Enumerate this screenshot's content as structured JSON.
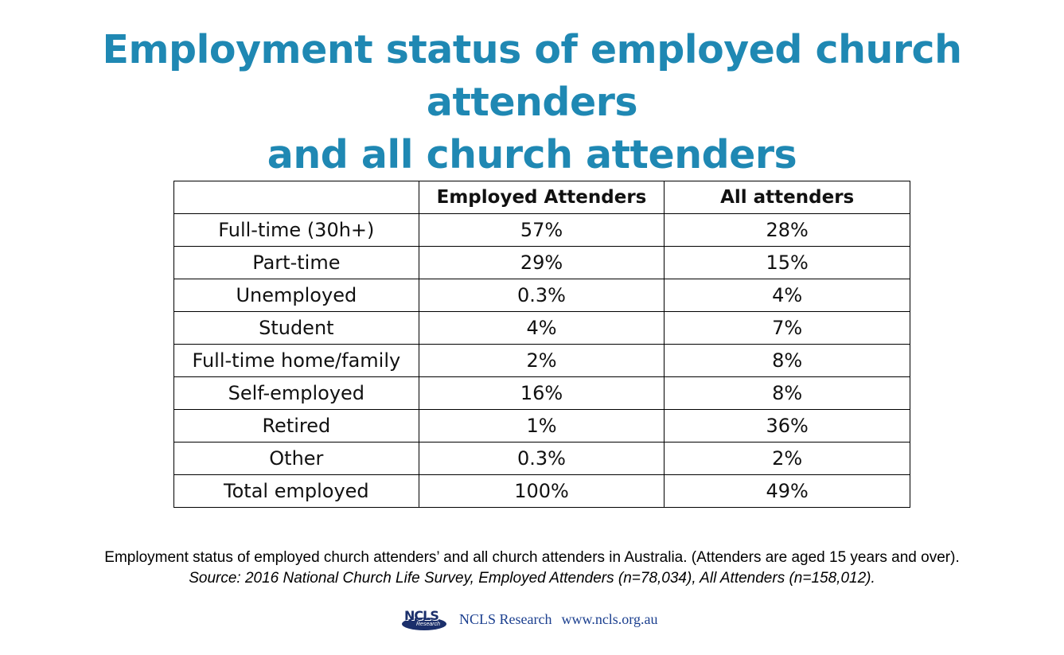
{
  "title": {
    "line1": "Employment status of employed church attenders",
    "line2": "and all church attenders"
  },
  "chart_data": {
    "type": "table",
    "columns": [
      "",
      "Employed Attenders",
      "All attenders"
    ],
    "rows": [
      {
        "label": "Full-time (30h+)",
        "values": [
          "57%",
          "28%"
        ]
      },
      {
        "label": "Part-time",
        "values": [
          "29%",
          "15%"
        ]
      },
      {
        "label": "Unemployed",
        "values": [
          "0.3%",
          "4%"
        ]
      },
      {
        "label": "Student",
        "values": [
          "4%",
          "7%"
        ]
      },
      {
        "label": "Full-time home/family",
        "values": [
          "2%",
          "8%"
        ]
      },
      {
        "label": "Self-employed",
        "values": [
          "16%",
          "8%"
        ]
      },
      {
        "label": "Retired",
        "values": [
          "1%",
          "36%"
        ]
      },
      {
        "label": "Other",
        "values": [
          "0.3%",
          "2%"
        ]
      },
      {
        "label": "Total employed",
        "values": [
          "100%",
          "49%"
        ]
      }
    ]
  },
  "caption": {
    "text": "Employment status of employed church attenders’ and all church attenders in Australia. (Attenders are aged 15 years and over).",
    "source": "Source: 2016 National Church Life Survey, Employed Attenders (n=78,034), All Attenders (n=158,012)."
  },
  "footer": {
    "logo_text": "NCLS",
    "logo_subtext": "Research",
    "org": "NCLS Research",
    "url": "www.ncls.org.au"
  },
  "colors": {
    "title": "#1f88b3",
    "footer": "#1b3f8f"
  }
}
